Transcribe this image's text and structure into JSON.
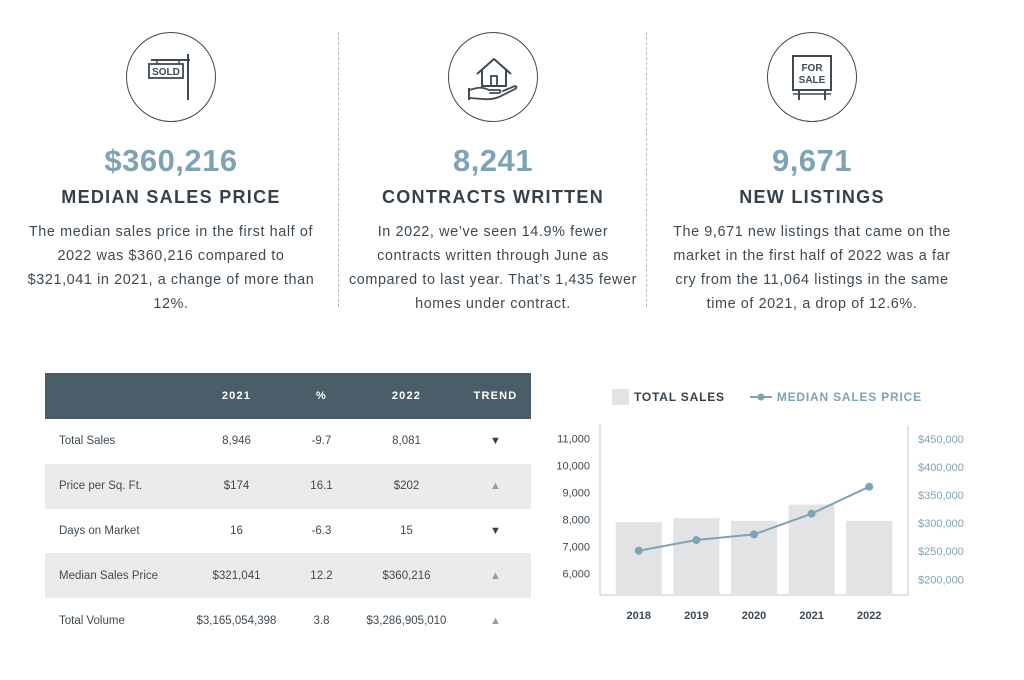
{
  "stats": [
    {
      "icon": "sold-sign-icon",
      "sign_text": "SOLD",
      "value": "$360,216",
      "label": "MEDIAN SALES PRICE",
      "description": "The median sales price in the first half of 2022 was $360,216 compared to $321,041 in 2021, a change of more than 12%."
    },
    {
      "icon": "house-in-hand-icon",
      "value": "8,241",
      "label": "CONTRACTS WRITTEN",
      "description": "In 2022, we’ve seen 14.9% fewer contracts written through June as compared to last year. That’s 1,435 fewer homes under contract."
    },
    {
      "icon": "for-sale-sign-icon",
      "sign_text": [
        "FOR",
        "SALE"
      ],
      "value": "9,671",
      "label": "NEW LISTINGS",
      "description": "The 9,671 new listings that came on the market in the first half of 2022 was a far cry from the 11,064 listings in the same time of 2021, a drop of 12.6%."
    }
  ],
  "table": {
    "headers": [
      "",
      "2021",
      "%",
      "2022",
      "TREND"
    ],
    "rows": [
      {
        "name": "Total Sales",
        "y2021": "8,946",
        "pct": "-9.7",
        "y2022": "8,081",
        "trend": "down"
      },
      {
        "name": "Price per Sq. Ft.",
        "y2021": "$174",
        "pct": "16.1",
        "y2022": "$202",
        "trend": "up"
      },
      {
        "name": "Days on Market",
        "y2021": "16",
        "pct": "-6.3",
        "y2022": "15",
        "trend": "down"
      },
      {
        "name": "Median Sales Price",
        "y2021": "$321,041",
        "pct": "12.2",
        "y2022": "$360,216",
        "trend": "up"
      },
      {
        "name": "Total Volume",
        "y2021": "$3,165,054,398",
        "pct": "3.8",
        "y2022": "$3,286,905,010",
        "trend": "up"
      }
    ]
  },
  "chart_data": {
    "type": "bar",
    "categories": [
      "2018",
      "2019",
      "2020",
      "2021",
      "2022"
    ],
    "series": [
      {
        "name": "TOTAL SALES",
        "type": "bar",
        "axis": "left",
        "values": [
          7900,
          8050,
          7950,
          8550,
          7950
        ]
      },
      {
        "name": "MEDIAN SALES PRICE",
        "type": "line",
        "axis": "right",
        "values": [
          251000,
          270000,
          280000,
          317000,
          365000
        ]
      }
    ],
    "left_axis": {
      "min": 5200,
      "max": 11500,
      "ticks": [
        6000,
        7000,
        8000,
        9000,
        10000,
        11000
      ],
      "tick_labels": [
        "6,000",
        "7,000",
        "8,000",
        "9,000",
        "10,000",
        "11,000"
      ]
    },
    "right_axis": {
      "min": 172000,
      "max": 475000,
      "ticks": [
        200000,
        250000,
        300000,
        350000,
        400000,
        450000
      ],
      "tick_labels": [
        "$200,000",
        "$250,000",
        "$300,000",
        "$350,000",
        "$400,000",
        "$450,000"
      ]
    },
    "legend": [
      "TOTAL SALES",
      "MEDIAN SALES PRICE"
    ],
    "colors": {
      "bar": "#e2e3e4",
      "line": "#7ea3b4",
      "axis": "#c3c9cd"
    }
  }
}
